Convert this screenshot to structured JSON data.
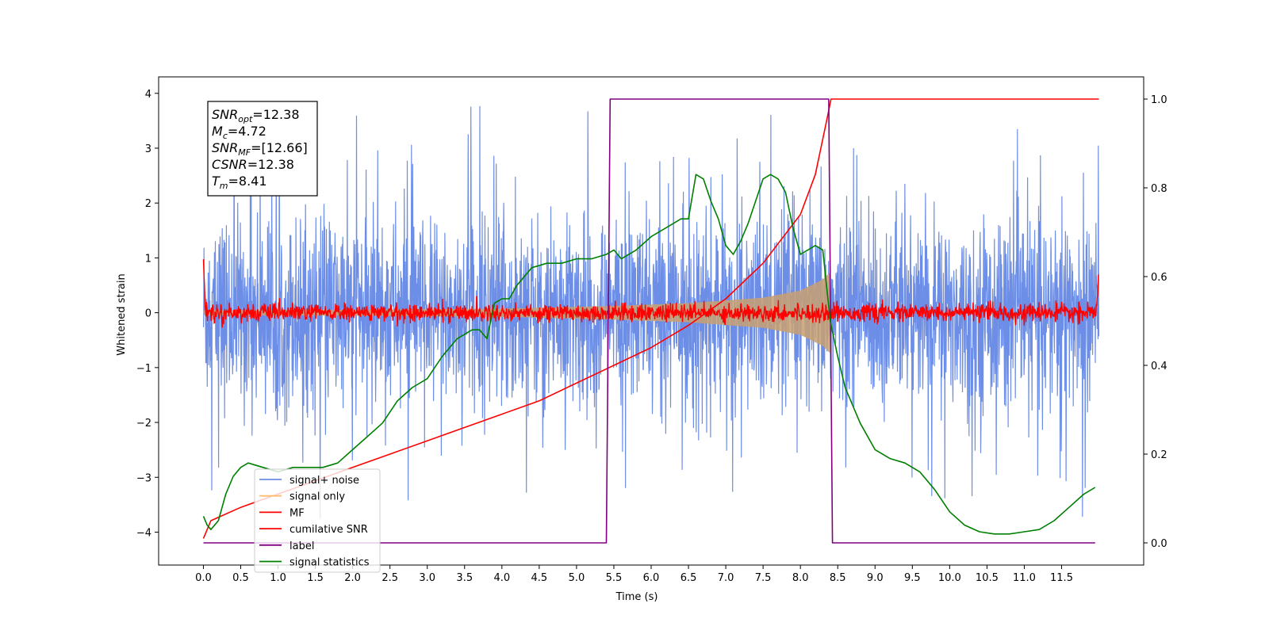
{
  "chart_data": {
    "type": "line",
    "title": "",
    "xlabel": "Time (s)",
    "ylabel_left": "Whitened strain",
    "ylabel_right": "",
    "xlim": [
      -0.6,
      12.6
    ],
    "ylim_left": [
      -4.6,
      4.3
    ],
    "ylim_right": [
      -0.05,
      1.05
    ],
    "x_ticks": [
      0.0,
      0.5,
      1.0,
      1.5,
      2.0,
      2.5,
      3.0,
      3.5,
      4.0,
      4.5,
      5.0,
      5.5,
      6.0,
      6.5,
      7.0,
      7.5,
      8.0,
      8.5,
      9.0,
      9.5,
      10.0,
      10.5,
      11.0,
      11.5
    ],
    "x_tick_labels": [
      "0.0",
      "0.5",
      "1.0",
      "1.5",
      "2.0",
      "2.5",
      "3.0",
      "3.5",
      "4.0",
      "4.5",
      "5.0",
      "5.5",
      "6.0",
      "6.5",
      "7.0",
      "7.5",
      "8.0",
      "8.5",
      "9.0",
      "9.5",
      "10.0",
      "10.5",
      "11.0",
      "11.5"
    ],
    "y_left_ticks": [
      -4,
      -3,
      -2,
      -1,
      0,
      1,
      2,
      3,
      4
    ],
    "y_left_tick_labels": [
      "−4",
      "−3",
      "−2",
      "−1",
      "0",
      "1",
      "2",
      "3",
      "4"
    ],
    "y_right_ticks": [
      0.0,
      0.2,
      0.4,
      0.6,
      0.8,
      1.0
    ],
    "y_right_tick_labels": [
      "0.0",
      "0.2",
      "0.4",
      "0.6",
      "0.8",
      "1.0"
    ],
    "grid": false,
    "legend_placement": "lower-left",
    "legend": [
      {
        "label": "signal+ noise",
        "color": "#6d8ee6"
      },
      {
        "label": "signal only",
        "color": "#ffbe6e"
      },
      {
        "label": "MF",
        "color": "#ff0000"
      },
      {
        "label": "cumilative SNR",
        "color": "#ff0000"
      },
      {
        "label": "label",
        "color": "#800080"
      },
      {
        "label": "signal statistics",
        "color": "#008000"
      }
    ],
    "info_box": {
      "lines": [
        {
          "base": "SNR",
          "sub": "opt",
          "rest": "=12.38"
        },
        {
          "base": "M",
          "sub": "c",
          "rest": "=4.72"
        },
        {
          "base": "SNR",
          "sub": "MF",
          "rest": "=[12.66]"
        },
        {
          "base": "CSNR",
          "sub": "",
          "rest": "=12.38"
        },
        {
          "base": "T",
          "sub": "m",
          "rest": "=8.41"
        }
      ]
    },
    "series": [
      {
        "name": "signal+ noise",
        "axis": "left",
        "color": "#6d8ee6",
        "x_range": [
          0.0,
          12.0
        ],
        "envelope_note_free": true,
        "band_hi": 1.5,
        "band_lo": -1.5,
        "spike_max": 3.85,
        "spike_min": -4.15
      },
      {
        "name": "signal only",
        "axis": "left",
        "color": "#c8a070",
        "x_range": [
          0.0,
          8.41
        ],
        "amplitude_points": [
          [
            0.0,
            0.04
          ],
          [
            2.0,
            0.05
          ],
          [
            4.0,
            0.07
          ],
          [
            5.5,
            0.12
          ],
          [
            6.5,
            0.17
          ],
          [
            7.5,
            0.27
          ],
          [
            8.0,
            0.4
          ],
          [
            8.3,
            0.6
          ],
          [
            8.41,
            0.75
          ]
        ]
      },
      {
        "name": "MF",
        "axis": "left",
        "color": "#ff0000",
        "x_range": [
          0.0,
          12.0
        ],
        "noise_amplitude": 0.08,
        "start_value": 1.0,
        "end_value": 0.85
      },
      {
        "name": "cumilative SNR",
        "axis": "right",
        "color": "#ff0000",
        "points": [
          [
            0.0,
            0.01
          ],
          [
            0.1,
            0.05
          ],
          [
            0.5,
            0.08
          ],
          [
            1.0,
            0.11
          ],
          [
            1.5,
            0.14
          ],
          [
            2.0,
            0.17
          ],
          [
            2.5,
            0.2
          ],
          [
            3.0,
            0.23
          ],
          [
            3.5,
            0.26
          ],
          [
            4.0,
            0.29
          ],
          [
            4.5,
            0.32
          ],
          [
            5.0,
            0.36
          ],
          [
            5.5,
            0.4
          ],
          [
            6.0,
            0.44
          ],
          [
            6.5,
            0.49
          ],
          [
            7.0,
            0.55
          ],
          [
            7.5,
            0.63
          ],
          [
            8.0,
            0.74
          ],
          [
            8.2,
            0.83
          ],
          [
            8.35,
            0.95
          ],
          [
            8.41,
            1.0
          ],
          [
            12.0,
            1.0
          ]
        ]
      },
      {
        "name": "label",
        "axis": "right",
        "color": "#800080",
        "points": [
          [
            0.0,
            0.0
          ],
          [
            5.4,
            0.0
          ],
          [
            5.45,
            1.0
          ],
          [
            8.38,
            1.0
          ],
          [
            8.43,
            0.0
          ],
          [
            11.95,
            0.0
          ]
        ]
      },
      {
        "name": "signal statistics",
        "axis": "right",
        "color": "#008000",
        "points": [
          [
            0.0,
            0.06
          ],
          [
            0.05,
            0.04
          ],
          [
            0.1,
            0.03
          ],
          [
            0.2,
            0.05
          ],
          [
            0.3,
            0.11
          ],
          [
            0.4,
            0.15
          ],
          [
            0.5,
            0.17
          ],
          [
            0.6,
            0.18
          ],
          [
            0.8,
            0.17
          ],
          [
            1.0,
            0.16
          ],
          [
            1.2,
            0.17
          ],
          [
            1.4,
            0.17
          ],
          [
            1.6,
            0.17
          ],
          [
            1.8,
            0.18
          ],
          [
            2.0,
            0.21
          ],
          [
            2.2,
            0.24
          ],
          [
            2.4,
            0.27
          ],
          [
            2.6,
            0.32
          ],
          [
            2.8,
            0.35
          ],
          [
            3.0,
            0.37
          ],
          [
            3.2,
            0.42
          ],
          [
            3.4,
            0.46
          ],
          [
            3.6,
            0.48
          ],
          [
            3.7,
            0.48
          ],
          [
            3.8,
            0.46
          ],
          [
            3.9,
            0.54
          ],
          [
            4.0,
            0.55
          ],
          [
            4.1,
            0.55
          ],
          [
            4.2,
            0.58
          ],
          [
            4.4,
            0.62
          ],
          [
            4.6,
            0.63
          ],
          [
            4.8,
            0.63
          ],
          [
            5.0,
            0.64
          ],
          [
            5.2,
            0.64
          ],
          [
            5.4,
            0.65
          ],
          [
            5.5,
            0.66
          ],
          [
            5.6,
            0.64
          ],
          [
            5.8,
            0.66
          ],
          [
            6.0,
            0.69
          ],
          [
            6.2,
            0.71
          ],
          [
            6.4,
            0.73
          ],
          [
            6.5,
            0.73
          ],
          [
            6.6,
            0.83
          ],
          [
            6.7,
            0.82
          ],
          [
            6.8,
            0.77
          ],
          [
            6.9,
            0.73
          ],
          [
            7.0,
            0.67
          ],
          [
            7.1,
            0.65
          ],
          [
            7.2,
            0.68
          ],
          [
            7.3,
            0.72
          ],
          [
            7.5,
            0.82
          ],
          [
            7.6,
            0.83
          ],
          [
            7.7,
            0.82
          ],
          [
            7.8,
            0.79
          ],
          [
            7.9,
            0.71
          ],
          [
            8.0,
            0.65
          ],
          [
            8.1,
            0.66
          ],
          [
            8.2,
            0.67
          ],
          [
            8.3,
            0.66
          ],
          [
            8.4,
            0.5
          ],
          [
            8.5,
            0.42
          ],
          [
            8.6,
            0.35
          ],
          [
            8.8,
            0.27
          ],
          [
            9.0,
            0.21
          ],
          [
            9.2,
            0.19
          ],
          [
            9.4,
            0.18
          ],
          [
            9.6,
            0.16
          ],
          [
            9.8,
            0.12
          ],
          [
            10.0,
            0.07
          ],
          [
            10.2,
            0.04
          ],
          [
            10.4,
            0.025
          ],
          [
            10.6,
            0.02
          ],
          [
            10.8,
            0.02
          ],
          [
            11.0,
            0.025
          ],
          [
            11.2,
            0.03
          ],
          [
            11.4,
            0.05
          ],
          [
            11.6,
            0.08
          ],
          [
            11.8,
            0.11
          ],
          [
            11.95,
            0.125
          ]
        ]
      }
    ]
  }
}
